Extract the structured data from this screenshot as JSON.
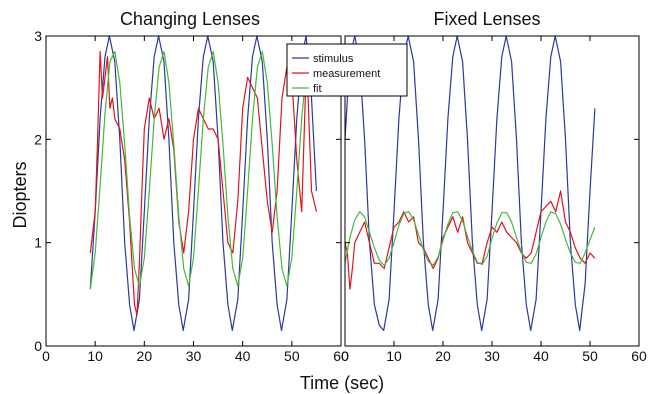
{
  "chart_data": {
    "type": "line",
    "xlabel": "Time (sec)",
    "ylabel": "Diopters",
    "legend": {
      "placement": "top-right of left panel",
      "entries": [
        {
          "name": "stimulus",
          "color": "#2b3a9c"
        },
        {
          "name": "measurement",
          "color": "#e0141e"
        },
        {
          "name": "fit",
          "color": "#46b83a"
        }
      ]
    },
    "panels": [
      {
        "title": "Changing Lenses",
        "xlim": [
          0,
          60
        ],
        "ylim": [
          0,
          3
        ],
        "xticks": [
          "0",
          "10",
          "20",
          "30",
          "40",
          "50",
          "60"
        ],
        "yticks": [
          "0",
          "1",
          "2",
          "3"
        ],
        "series": [
          {
            "name": "stimulus",
            "color": "#2b3a9c",
            "x": [
              9,
              10,
              11,
              12,
              12.9,
              14,
              15,
              16,
              17,
              17.9,
              19,
              20,
              21,
              22,
              22.9,
              24,
              25,
              26,
              27,
              27.9,
              29,
              30,
              31,
              32,
              32.9,
              34,
              35,
              36,
              37,
              37.9,
              39,
              40,
              41,
              42,
              42.9,
              44,
              45,
              46,
              47,
              47.9,
              49,
              50,
              51,
              52,
              52.9,
              54,
              55
            ],
            "y": [
              0.55,
              1.3,
              2.2,
              2.8,
              3.0,
              2.75,
              2.0,
              1.0,
              0.4,
              0.15,
              0.45,
              1.3,
              2.2,
              2.8,
              3.0,
              2.75,
              2.0,
              1.0,
              0.4,
              0.15,
              0.45,
              1.3,
              2.2,
              2.8,
              3.0,
              2.75,
              2.0,
              1.0,
              0.4,
              0.15,
              0.45,
              1.3,
              2.2,
              2.8,
              3.0,
              2.75,
              2.0,
              1.0,
              0.4,
              0.15,
              0.45,
              1.3,
              2.2,
              2.8,
              3.0,
              2.4,
              1.5
            ]
          },
          {
            "name": "measurement",
            "color": "#e0141e",
            "x": [
              9,
              10,
              10.5,
              11,
              11.5,
              12,
              12.5,
              13,
              13.5,
              14,
              15,
              16,
              17,
              17.5,
              18,
              18.5,
              19,
              19.5,
              20,
              21,
              22,
              23,
              24,
              25,
              26,
              27,
              28,
              29,
              30,
              31,
              32,
              33,
              34,
              35,
              36,
              37,
              38,
              39,
              40,
              41,
              42,
              43,
              44,
              45,
              46,
              47,
              48,
              49,
              50,
              51,
              52,
              53,
              54,
              55
            ],
            "y": [
              0.9,
              1.3,
              2.0,
              2.85,
              2.4,
              2.6,
              2.8,
              2.3,
              2.4,
              2.2,
              2.1,
              1.8,
              1.2,
              0.8,
              0.4,
              0.3,
              0.8,
              1.5,
              2.1,
              2.4,
              2.2,
              2.3,
              2.0,
              2.2,
              1.9,
              1.2,
              0.9,
              1.3,
              2.0,
              2.3,
              2.2,
              2.1,
              2.1,
              2.0,
              1.5,
              1.0,
              0.9,
              1.4,
              2.3,
              2.6,
              2.5,
              2.4,
              1.9,
              1.4,
              1.1,
              1.5,
              2.4,
              2.7,
              2.6,
              1.8,
              1.3,
              2.8,
              1.5,
              1.3
            ]
          },
          {
            "name": "fit",
            "color": "#46b83a",
            "x": [
              9,
              10,
              11,
              12,
              13,
              14,
              15,
              16,
              17,
              18,
              19,
              20,
              21,
              22,
              23,
              24,
              25,
              26,
              27,
              28,
              29,
              30,
              31,
              32,
              33,
              34,
              35,
              36,
              37,
              38,
              39,
              40,
              41,
              42,
              43,
              44,
              45,
              46,
              47,
              48,
              49,
              50,
              51,
              52,
              53,
              54,
              55
            ],
            "y": [
              0.55,
              0.9,
              1.55,
              2.25,
              2.75,
              2.85,
              2.55,
              1.95,
              1.25,
              0.75,
              0.58,
              0.85,
              1.5,
              2.2,
              2.7,
              2.85,
              2.55,
              1.95,
              1.25,
              0.75,
              0.58,
              0.85,
              1.5,
              2.2,
              2.7,
              2.85,
              2.55,
              1.95,
              1.25,
              0.75,
              0.58,
              0.85,
              1.5,
              2.2,
              2.7,
              2.85,
              2.55,
              1.95,
              1.25,
              0.75,
              0.58,
              0.85,
              1.5,
              2.2,
              2.7,
              2.85,
              2.6
            ]
          }
        ]
      },
      {
        "title": "Fixed Lenses",
        "xlim": [
          0,
          60
        ],
        "ylim": [
          0,
          3
        ],
        "xticks": [
          "0",
          "10",
          "20",
          "30",
          "40",
          "50",
          "60"
        ],
        "yticks": [],
        "series": [
          {
            "name": "stimulus",
            "color": "#2b3a9c",
            "x": [
              0,
              1,
              2,
              3,
              4,
              5,
              6,
              7,
              7.9,
              9,
              10,
              11,
              12,
              12.9,
              14,
              15,
              16,
              17,
              17.9,
              19,
              20,
              21,
              22,
              22.9,
              24,
              25,
              26,
              27,
              27.9,
              29,
              30,
              31,
              32,
              32.9,
              34,
              35,
              36,
              37,
              37.9,
              39,
              40,
              41,
              42,
              42.9,
              44,
              45,
              46,
              47,
              47.9,
              49,
              50,
              51
            ],
            "y": [
              2.0,
              2.8,
              3.0,
              2.75,
              2.0,
              1.0,
              0.4,
              0.2,
              0.15,
              0.45,
              1.3,
              2.2,
              2.8,
              3.0,
              2.75,
              2.0,
              1.0,
              0.4,
              0.15,
              0.45,
              1.3,
              2.2,
              2.8,
              3.0,
              2.75,
              2.0,
              1.0,
              0.4,
              0.15,
              0.45,
              1.3,
              2.2,
              2.8,
              3.0,
              2.75,
              2.0,
              1.0,
              0.4,
              0.15,
              0.45,
              1.3,
              2.2,
              2.8,
              3.0,
              2.75,
              2.0,
              1.0,
              0.4,
              0.15,
              0.6,
              1.5,
              2.3
            ]
          },
          {
            "name": "measurement",
            "color": "#e0141e",
            "x": [
              0,
              0.5,
              1,
              1.5,
              2,
              3,
              4,
              5,
              6,
              7,
              8,
              9,
              10,
              11,
              12,
              13,
              14,
              15,
              16,
              17,
              18,
              19,
              20,
              21,
              22,
              23,
              24,
              25,
              26,
              27,
              28,
              29,
              30,
              31,
              32,
              33,
              34,
              35,
              36,
              37,
              38,
              39,
              40,
              41,
              42,
              43,
              44,
              45,
              46,
              47,
              48,
              49,
              50,
              51
            ],
            "y": [
              1.0,
              0.9,
              0.55,
              0.75,
              1.0,
              1.1,
              1.2,
              1.0,
              0.8,
              0.8,
              0.75,
              0.95,
              1.15,
              1.2,
              1.3,
              1.2,
              1.25,
              1.0,
              0.95,
              0.85,
              0.75,
              0.85,
              1.05,
              1.15,
              1.25,
              1.1,
              1.25,
              1.0,
              0.9,
              0.8,
              0.8,
              1.0,
              1.15,
              1.1,
              1.2,
              1.1,
              1.05,
              1.0,
              0.9,
              0.85,
              0.9,
              1.1,
              1.3,
              1.35,
              1.4,
              1.3,
              1.5,
              1.2,
              1.1,
              0.95,
              0.85,
              0.8,
              0.9,
              0.85
            ]
          },
          {
            "name": "fit",
            "color": "#46b83a",
            "x": [
              0,
              1,
              2,
              3,
              4,
              5,
              6,
              7,
              8,
              9,
              10,
              11,
              12,
              13,
              14,
              15,
              16,
              17,
              18,
              19,
              20,
              21,
              22,
              23,
              24,
              25,
              26,
              27,
              28,
              29,
              30,
              31,
              32,
              33,
              34,
              35,
              36,
              37,
              38,
              39,
              40,
              41,
              42,
              43,
              44,
              45,
              46,
              47,
              48,
              49,
              50,
              51
            ],
            "y": [
              0.8,
              1.05,
              1.22,
              1.3,
              1.25,
              1.1,
              0.95,
              0.83,
              0.78,
              0.85,
              1.0,
              1.17,
              1.28,
              1.3,
              1.22,
              1.08,
              0.93,
              0.82,
              0.78,
              0.86,
              1.02,
              1.18,
              1.29,
              1.3,
              1.21,
              1.06,
              0.92,
              0.81,
              0.79,
              0.87,
              1.04,
              1.19,
              1.29,
              1.29,
              1.2,
              1.05,
              0.91,
              0.81,
              0.8,
              0.89,
              1.05,
              1.2,
              1.3,
              1.28,
              1.18,
              1.03,
              0.9,
              0.81,
              0.8,
              0.9,
              1.03,
              1.15
            ]
          }
        ]
      }
    ]
  }
}
